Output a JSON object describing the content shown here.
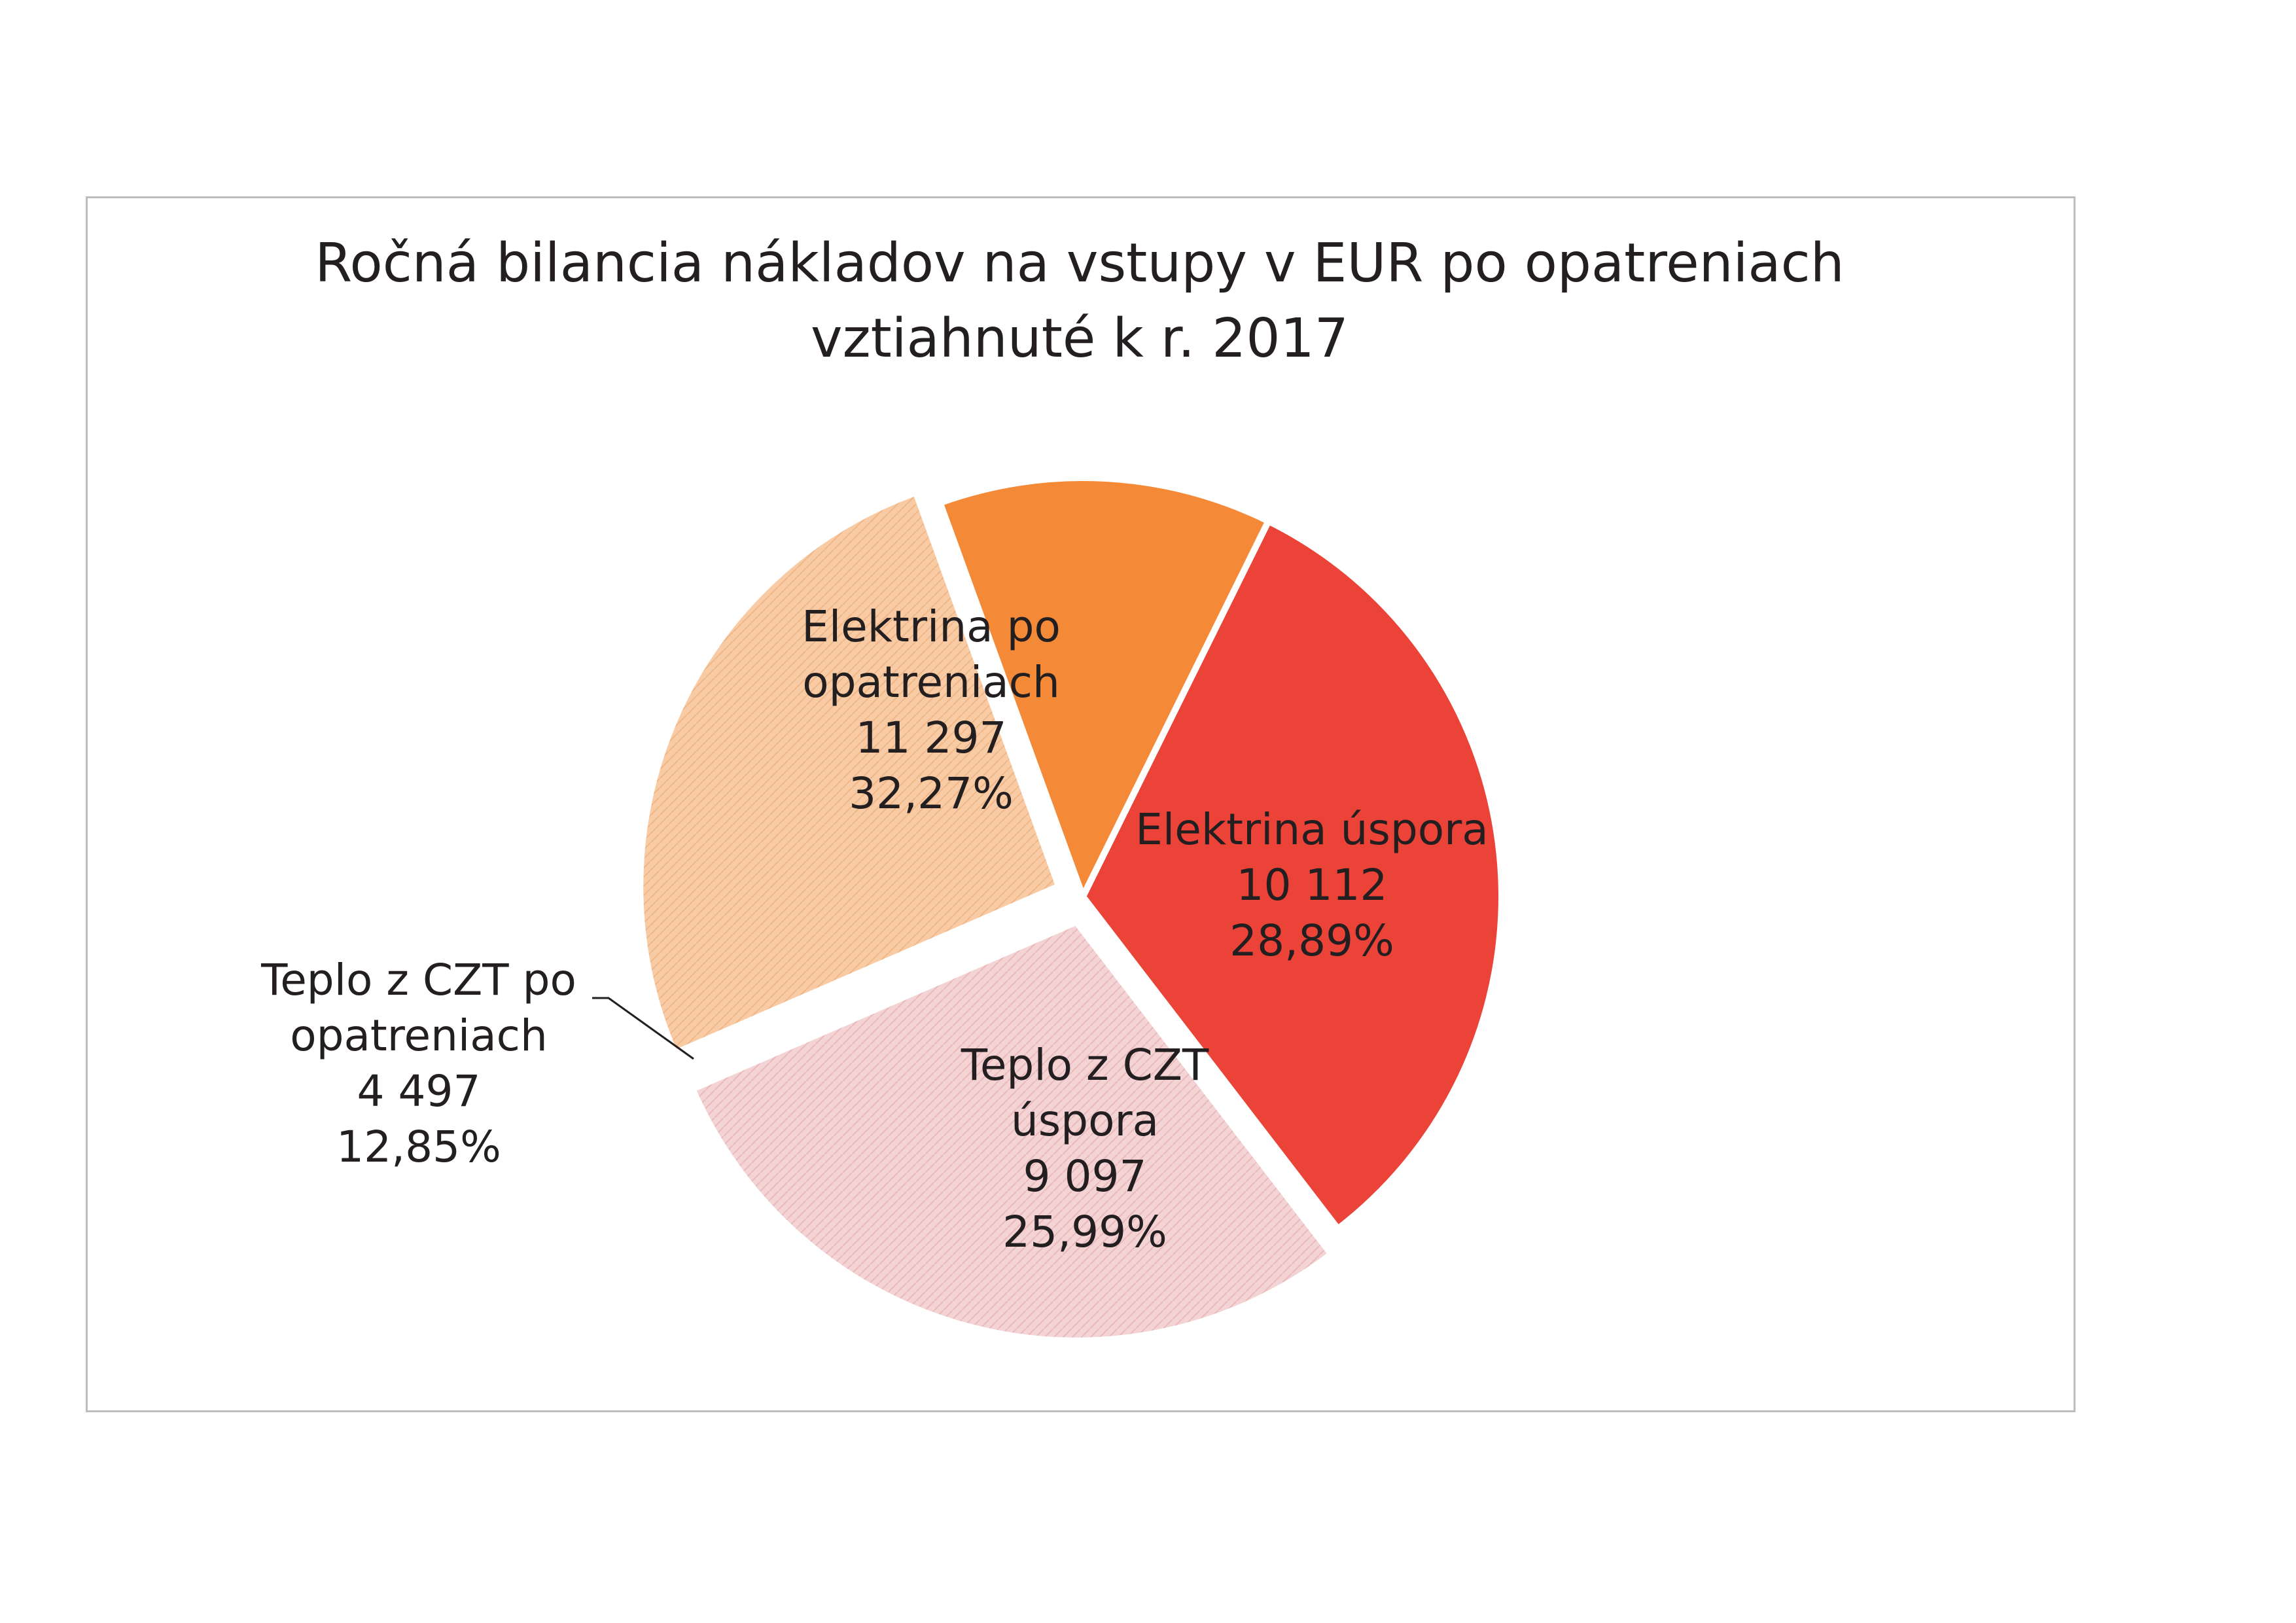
{
  "chart_data": {
    "type": "pie",
    "title_lines": [
      "Ročná bilancia nákladov na vstupy v EUR po opatreniach",
      "vztiahnuté k r. 2017"
    ],
    "slices": [
      {
        "name": "Elektrina po opatreniach",
        "label_lines": [
          "Elektrina po",
          "opatreniach"
        ],
        "value": 11297,
        "value_text": "11 297",
        "percent": 32.27,
        "percent_text": "32,27%",
        "color": "#ec4338",
        "exploded": false
      },
      {
        "name": "Elektrina úspora",
        "label_lines": [
          "Elektrina úspora"
        ],
        "value": 10112,
        "value_text": "10 112",
        "percent": 28.89,
        "percent_text": "28,89%",
        "color": "#f4d3d4",
        "exploded": true
      },
      {
        "name": "Teplo z CZT úspora",
        "label_lines": [
          "Teplo z CZT",
          "úspora"
        ],
        "value": 9097,
        "value_text": "9 097",
        "percent": 25.99,
        "percent_text": "25,99%",
        "color": "#f8cba4",
        "exploded": true
      },
      {
        "name": "Teplo z CZT po opatreniach",
        "label_lines": [
          "Teplo z CZT po",
          "opatreniach"
        ],
        "value": 4497,
        "value_text": "4 497",
        "percent": 12.85,
        "percent_text": "12,85%",
        "color": "#f48a38",
        "exploded": false,
        "label_outside": true
      }
    ],
    "legend": "none"
  }
}
